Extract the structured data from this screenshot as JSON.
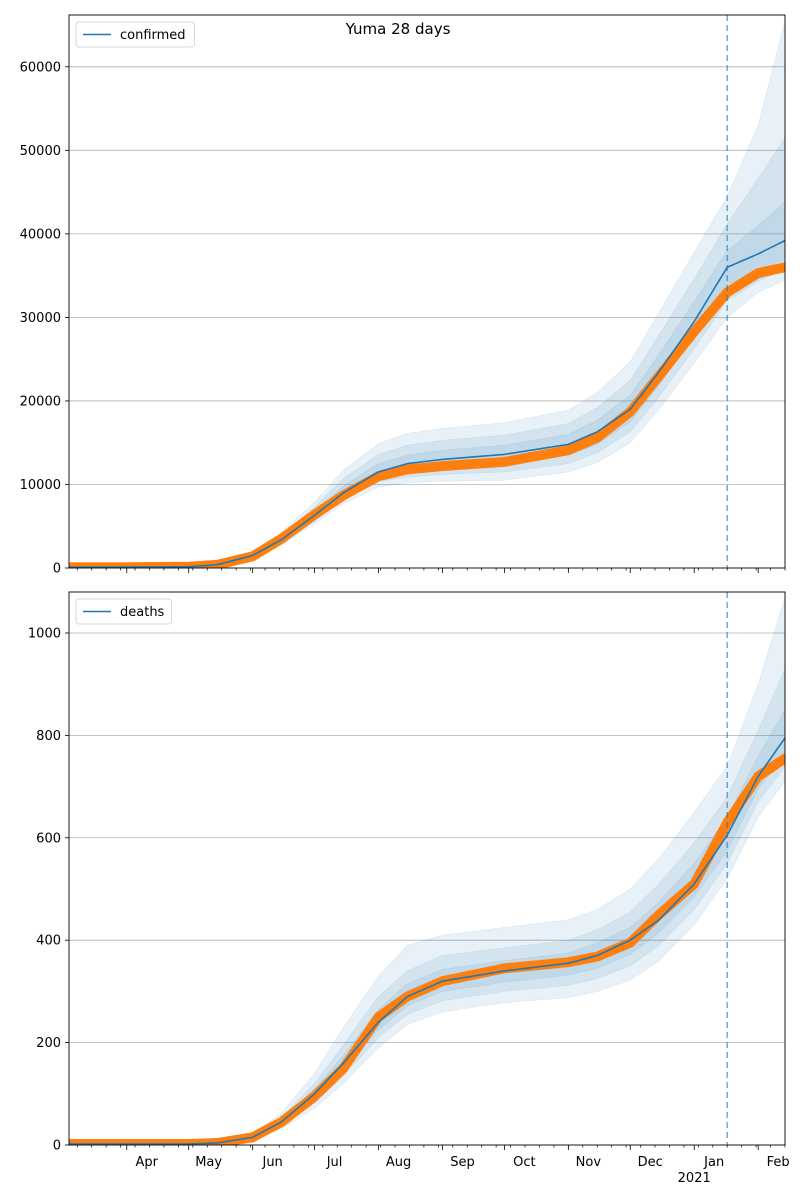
{
  "figure": {
    "title": "Yuma 28 days"
  },
  "chart_data": [
    {
      "type": "line",
      "title": "",
      "xlabel": "",
      "ylabel": "",
      "legend": {
        "placement": "top-left",
        "entries": [
          "confirmed"
        ]
      },
      "grid": "horizontal",
      "x_range": [
        "2020-03-04",
        "2021-02-14"
      ],
      "ylim": [
        0,
        66200
      ],
      "yticks": [
        0,
        10000,
        20000,
        30000,
        40000,
        50000,
        60000
      ],
      "forecast_start": "2021-01-17",
      "colors": {
        "model": "#1f77b4",
        "observed": "#ff7f0e",
        "bands": "#1f77b4",
        "vline": "#1f77b4"
      },
      "series": [
        {
          "name": "confirmed",
          "kind": "model-median",
          "x": [
            "2020-03-04",
            "2020-04-01",
            "2020-05-01",
            "2020-05-15",
            "2020-06-01",
            "2020-06-15",
            "2020-07-01",
            "2020-07-15",
            "2020-08-01",
            "2020-08-15",
            "2020-09-01",
            "2020-10-01",
            "2020-11-01",
            "2020-11-15",
            "2020-12-01",
            "2020-12-15",
            "2021-01-01",
            "2021-01-17",
            "2021-02-01",
            "2021-02-14"
          ],
          "values": [
            100,
            100,
            150,
            400,
            1500,
            3400,
            6300,
            9000,
            11500,
            12500,
            13000,
            13600,
            14800,
            16300,
            19000,
            23500,
            29500,
            36000,
            37600,
            39200
          ]
        },
        {
          "kind": "observed",
          "x": [
            "2020-03-04",
            "2020-04-01",
            "2020-05-01",
            "2020-05-15",
            "2020-06-01",
            "2020-06-15",
            "2020-07-01",
            "2020-07-15",
            "2020-08-01",
            "2020-08-15",
            "2020-09-01",
            "2020-10-01",
            "2020-11-01",
            "2020-11-15",
            "2020-12-01",
            "2020-12-15",
            "2021-01-01",
            "2021-01-17",
            "2021-02-01",
            "2021-02-14"
          ],
          "values": [
            100,
            100,
            150,
            400,
            1400,
            3500,
            6400,
            8700,
            11000,
            11800,
            12200,
            12700,
            14100,
            15600,
            18700,
            23000,
            28300,
            33000,
            35300,
            36000
          ]
        }
      ],
      "bands": [
        {
          "lower": [
            100,
            100,
            100,
            300,
            1150,
            2800,
            5300,
            7700,
            9700,
            10200,
            10400,
            10500,
            11500,
            12600,
            15000,
            19000,
            24500,
            30000,
            33000,
            34500
          ],
          "upper": [
            100,
            100,
            200,
            520,
            1900,
            4300,
            7900,
            11700,
            14900,
            16100,
            16700,
            17400,
            18900,
            21000,
            24700,
            30600,
            37800,
            44500,
            53000,
            65500
          ]
        },
        {
          "lower": [
            100,
            100,
            100,
            330,
            1250,
            3000,
            5600,
            8200,
            10300,
            10900,
            11200,
            11500,
            12500,
            13800,
            16300,
            20500,
            26300,
            32000,
            34300,
            35800
          ],
          "upper": [
            100,
            100,
            180,
            480,
            1750,
            3950,
            7300,
            10700,
            13600,
            14700,
            15300,
            15900,
            17300,
            19200,
            22500,
            27900,
            34600,
            41200,
            46600,
            51500
          ]
        },
        {
          "lower": [
            100,
            100,
            100,
            360,
            1350,
            3150,
            5900,
            8600,
            10800,
            11600,
            12000,
            12500,
            13500,
            14800,
            17500,
            21900,
            27800,
            34000,
            35400,
            37000
          ],
          "upper": [
            100,
            100,
            165,
            440,
            1620,
            3650,
            6800,
            9800,
            12500,
            13500,
            14100,
            14700,
            16000,
            17700,
            20700,
            25600,
            31900,
            38000,
            41000,
            43800
          ]
        }
      ]
    },
    {
      "type": "line",
      "title": "",
      "xlabel": "",
      "ylabel": "",
      "legend": {
        "placement": "top-left",
        "entries": [
          "deaths"
        ]
      },
      "grid": "horizontal",
      "x_range": [
        "2020-03-04",
        "2021-02-14"
      ],
      "ylim": [
        0,
        1080
      ],
      "yticks": [
        0,
        200,
        400,
        600,
        800,
        1000
      ],
      "forecast_start": "2021-01-17",
      "x_tick_labels": [
        "Apr",
        "May",
        "Jun",
        "Jul",
        "Aug",
        "Sep",
        "Oct",
        "Nov",
        "Dec",
        "Jan",
        "Feb"
      ],
      "x_tick_year_label": "2021",
      "series": [
        {
          "name": "deaths",
          "kind": "model-median",
          "x": [
            "2020-03-04",
            "2020-04-01",
            "2020-05-01",
            "2020-05-15",
            "2020-06-01",
            "2020-06-15",
            "2020-07-01",
            "2020-07-15",
            "2020-08-01",
            "2020-08-15",
            "2020-09-01",
            "2020-10-01",
            "2020-11-01",
            "2020-11-15",
            "2020-12-01",
            "2020-12-15",
            "2021-01-01",
            "2021-01-17",
            "2021-02-01",
            "2021-02-14"
          ],
          "values": [
            2,
            2,
            2,
            4,
            15,
            45,
            100,
            160,
            240,
            290,
            320,
            340,
            355,
            370,
            400,
            440,
            510,
            605,
            720,
            795
          ]
        },
        {
          "kind": "observed",
          "x": [
            "2020-03-04",
            "2020-04-01",
            "2020-05-01",
            "2020-05-15",
            "2020-06-01",
            "2020-06-15",
            "2020-07-01",
            "2020-07-15",
            "2020-08-01",
            "2020-08-15",
            "2020-09-01",
            "2020-10-01",
            "2020-11-01",
            "2020-11-15",
            "2020-12-01",
            "2020-12-15",
            "2021-01-01",
            "2021-01-17",
            "2021-02-01",
            "2021-02-14"
          ],
          "values": [
            2,
            2,
            2,
            4,
            15,
            45,
            95,
            150,
            250,
            290,
            320,
            345,
            357,
            368,
            395,
            450,
            510,
            630,
            720,
            755
          ]
        }
      ],
      "bands": [
        {
          "lower": [
            2,
            2,
            2,
            3,
            10,
            32,
            72,
            120,
            190,
            235,
            260,
            278,
            288,
            300,
            322,
            360,
            430,
            520,
            640,
            710
          ],
          "upper": [
            2,
            2,
            3,
            6,
            22,
            62,
            140,
            230,
            330,
            390,
            410,
            425,
            440,
            460,
            500,
            560,
            650,
            740,
            900,
            1070
          ]
        },
        {
          "lower": [
            2,
            2,
            2,
            3,
            11,
            36,
            82,
            135,
            210,
            255,
            282,
            300,
            312,
            325,
            350,
            390,
            460,
            550,
            670,
            740
          ],
          "upper": [
            2,
            2,
            3,
            5,
            19,
            54,
            120,
            195,
            290,
            340,
            370,
            385,
            400,
            420,
            455,
            510,
            590,
            680,
            810,
            930
          ]
        },
        {
          "lower": [
            2,
            2,
            2,
            4,
            12,
            40,
            90,
            148,
            225,
            272,
            300,
            318,
            332,
            345,
            372,
            415,
            485,
            575,
            695,
            765
          ],
          "upper": [
            2,
            2,
            3,
            5,
            17,
            50,
            110,
            175,
            265,
            315,
            343,
            360,
            375,
            395,
            425,
            475,
            550,
            640,
            760,
            850
          ]
        }
      ]
    }
  ]
}
